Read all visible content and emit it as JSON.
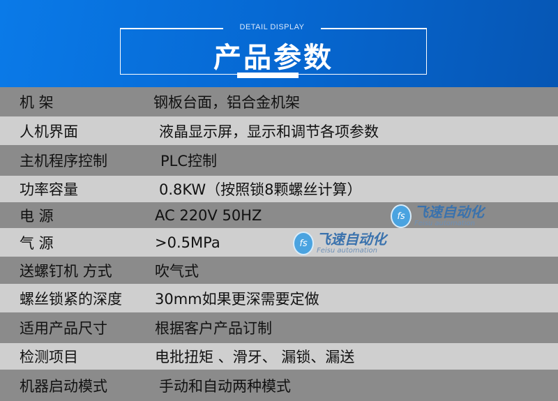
{
  "header": {
    "subtitle": "DETAIL DISPLAY",
    "title": "产品参数"
  },
  "rows": [
    {
      "label": "机 架",
      "value": "钢板台面，铝合金机架"
    },
    {
      "label": "人机界面",
      "value": "液晶显示屏，显示和调节各项参数"
    },
    {
      "label": "主机程序控制",
      "value": "PLC控制"
    },
    {
      "label": "功率容量",
      "value": "0.8KW（按照锁8颗螺丝计算）"
    },
    {
      "label": "电 源",
      "value": "AC 220V 50HZ"
    },
    {
      "label": "气 源",
      "value": ">0.5MPa"
    },
    {
      "label": "送螺钉机 方式",
      "value": "吹气式"
    },
    {
      "label": "螺丝锁紧的深度",
      "value": "30mm如果更深需要定做"
    },
    {
      "label": "适用产品尺寸",
      "value": "根据客户产品订制"
    },
    {
      "label": "检测项目",
      "value": "电批扭矩 、滑牙、 漏锁、漏送"
    },
    {
      "label": "机器启动模式",
      "value": "手动和自动两种模式"
    }
  ],
  "watermark": {
    "logo": "fs",
    "cn": "飞速自动化",
    "en": "Feisu automation"
  },
  "colors": {
    "header_blue": "#0a7ae8",
    "row_dark": "#8b8b8b",
    "row_light": "#cfcfcf"
  }
}
